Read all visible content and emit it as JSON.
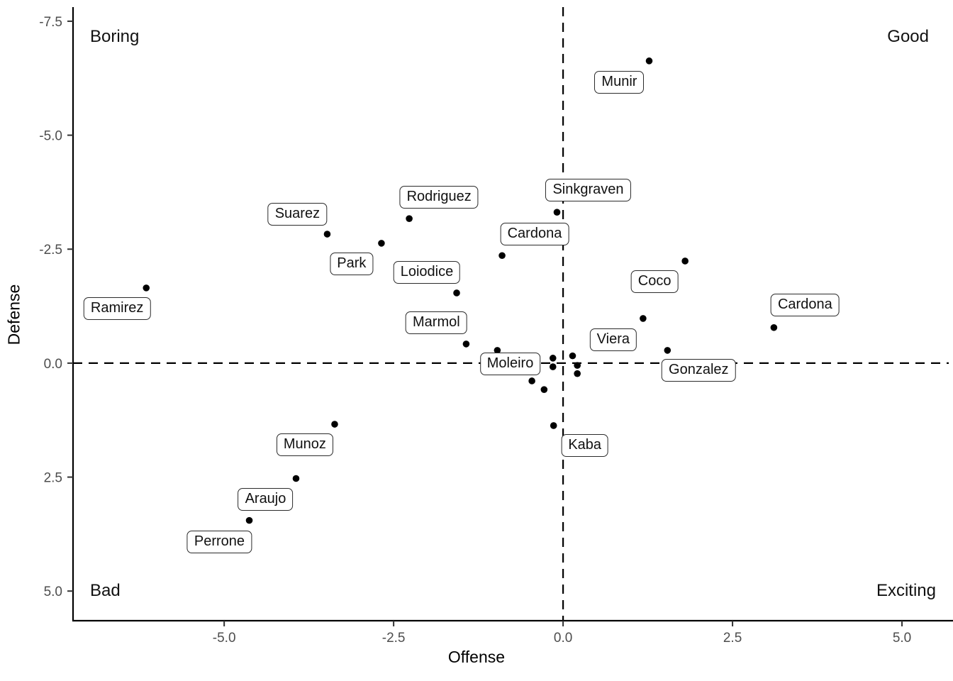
{
  "chart_data": {
    "type": "scatter",
    "title": "",
    "xlabel": "Offense",
    "ylabel": "Defense",
    "x_ticks": [
      "-5.0",
      "-2.5",
      "0.0",
      "2.5",
      "5.0"
    ],
    "x_tick_values": [
      -5.0,
      -2.5,
      0.0,
      2.5,
      5.0
    ],
    "y_ticks": [
      "-7.5",
      "-5.0",
      "-2.5",
      "0.0",
      "2.5",
      "5.0"
    ],
    "y_tick_values": [
      -7.5,
      -5.0,
      -2.5,
      0.0,
      2.5,
      5.0
    ],
    "xlim": [
      -7.23,
      5.69
    ],
    "ylim": [
      -7.81,
      5.65
    ],
    "y_axis_reversed": true,
    "grid": false,
    "legend": "none",
    "reference_lines": {
      "vertical_x": 0.0,
      "horizontal_y": 0.0,
      "style": "dashed"
    },
    "corner_annotations": [
      {
        "text": "Boring",
        "position": "top-left"
      },
      {
        "text": "Good",
        "position": "top-right"
      },
      {
        "text": "Bad",
        "position": "bottom-left"
      },
      {
        "text": "Exciting",
        "position": "bottom-right"
      }
    ],
    "points": [
      {
        "name": "Munir",
        "x": 1.27,
        "y": -6.63,
        "lx": 0.83,
        "ly": -6.16
      },
      {
        "name": "Sinkgraven",
        "x": -0.09,
        "y": -3.31,
        "lx": 0.37,
        "ly": -3.79
      },
      {
        "name": "Rodriguez",
        "x": -2.27,
        "y": -3.17,
        "lx": -1.83,
        "ly": -3.64
      },
      {
        "name": "Suarez",
        "x": -3.48,
        "y": -2.83,
        "lx": -3.92,
        "ly": -3.27
      },
      {
        "name": "Park",
        "x": -2.68,
        "y": -2.63,
        "lx": -3.12,
        "ly": -2.18
      },
      {
        "name": "Cardona",
        "x": -0.9,
        "y": -2.36,
        "lx": -0.42,
        "ly": -2.83
      },
      {
        "name": "Coco",
        "x": 1.8,
        "y": -2.24,
        "lx": 1.35,
        "ly": -1.79
      },
      {
        "name": "Ramirez",
        "x": -6.15,
        "y": -1.65,
        "lx": -6.58,
        "ly": -1.2
      },
      {
        "name": "Loiodice",
        "x": -1.57,
        "y": -1.54,
        "lx": -2.01,
        "ly": -1.99
      },
      {
        "name": "Viera",
        "x": 1.18,
        "y": -0.98,
        "lx": 0.74,
        "ly": -0.51
      },
      {
        "name": "Cardona",
        "x": 3.11,
        "y": -0.78,
        "lx": 3.57,
        "ly": -1.28
      },
      {
        "name": "Marmol",
        "x": -1.43,
        "y": -0.42,
        "lx": -1.87,
        "ly": -0.89
      },
      {
        "name": "Moleiro",
        "x": -0.97,
        "y": -0.28,
        "lx": -0.78,
        "ly": 0.02
      },
      {
        "name": "Gonzalez",
        "x": 1.54,
        "y": -0.28,
        "lx": 2.0,
        "ly": 0.16
      },
      {
        "name": null,
        "x": -0.15,
        "y": -0.11
      },
      {
        "name": null,
        "x": -0.15,
        "y": 0.08
      },
      {
        "name": null,
        "x": 0.14,
        "y": -0.16
      },
      {
        "name": null,
        "x": 0.21,
        "y": 0.05
      },
      {
        "name": null,
        "x": 0.21,
        "y": 0.23
      },
      {
        "name": null,
        "x": -0.46,
        "y": 0.39
      },
      {
        "name": null,
        "x": -0.28,
        "y": 0.58
      },
      {
        "name": "Kaba",
        "x": -0.14,
        "y": 1.37,
        "lx": 0.32,
        "ly": 1.8
      },
      {
        "name": "Munoz",
        "x": -3.37,
        "y": 1.34,
        "lx": -3.81,
        "ly": 1.79
      },
      {
        "name": "Araujo",
        "x": -3.94,
        "y": 2.53,
        "lx": -4.39,
        "ly": 2.99
      },
      {
        "name": "Perrone",
        "x": -4.63,
        "y": 3.45,
        "lx": -5.07,
        "ly": 3.92
      }
    ],
    "colors": {
      "point": "#000000",
      "axis_line": "#000000",
      "tick_mark": "#333333",
      "tick_label": "#4d4d4d",
      "reference_line": "#000000",
      "label_border": "#2b2b2b",
      "label_fill": "#ffffff",
      "background": "#ffffff"
    }
  }
}
